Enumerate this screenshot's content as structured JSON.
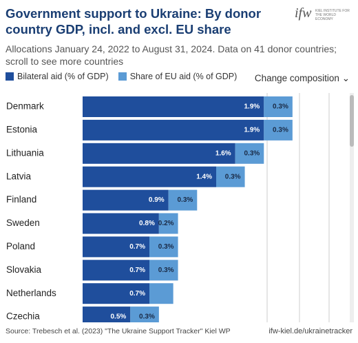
{
  "chart_data": {
    "type": "stacked-bar-horizontal",
    "title": "Government support to Ukraine: By donor country GDP, incl. and excl. EU share",
    "subtitle": "Allocations January 24, 2022 to August 31, 2024. Data on 41 donor countries; scroll to see more countries",
    "categories": [
      "Denmark",
      "Estonia",
      "Lithuania",
      "Latvia",
      "Finland",
      "Sweden",
      "Poland",
      "Slovakia",
      "Netherlands",
      "Czechia"
    ],
    "series": [
      {
        "name": "Bilateral aid (% of GDP)",
        "color": "#1f4e9c",
        "values": [
          1.9,
          1.9,
          1.6,
          1.4,
          0.9,
          0.8,
          0.7,
          0.7,
          0.7,
          0.5
        ],
        "value_labels": [
          "1.9%",
          "1.9%",
          "1.6%",
          "1.4%",
          "0.9%",
          "0.8%",
          "0.7%",
          "0.7%",
          "0.7%",
          "0.5%"
        ]
      },
      {
        "name": "Share of EU aid (% of GDP)",
        "color": "#5b9bd5",
        "values": [
          0.3,
          0.3,
          0.3,
          0.3,
          0.3,
          0.2,
          0.3,
          0.3,
          0.25,
          0.3
        ],
        "value_labels": [
          "0.3%",
          "0.3%",
          "0.3%",
          "0.3%",
          "0.3%",
          "0.2%",
          "0.3%",
          "0.3%",
          null,
          "0.3%"
        ]
      }
    ],
    "xlim": [
      0,
      2.8
    ],
    "source": "Source: Trebesch et al. (2023) \"The Ukraine Support Tracker\" Kiel WP",
    "link": "ifw-kiel.de/ukrainetracker"
  },
  "controls": {
    "dropdown": "Change composition"
  },
  "logo": {
    "mark": "ifw",
    "text": "KIEL INSTITUTE FOR THE WORLD ECONOMY"
  }
}
